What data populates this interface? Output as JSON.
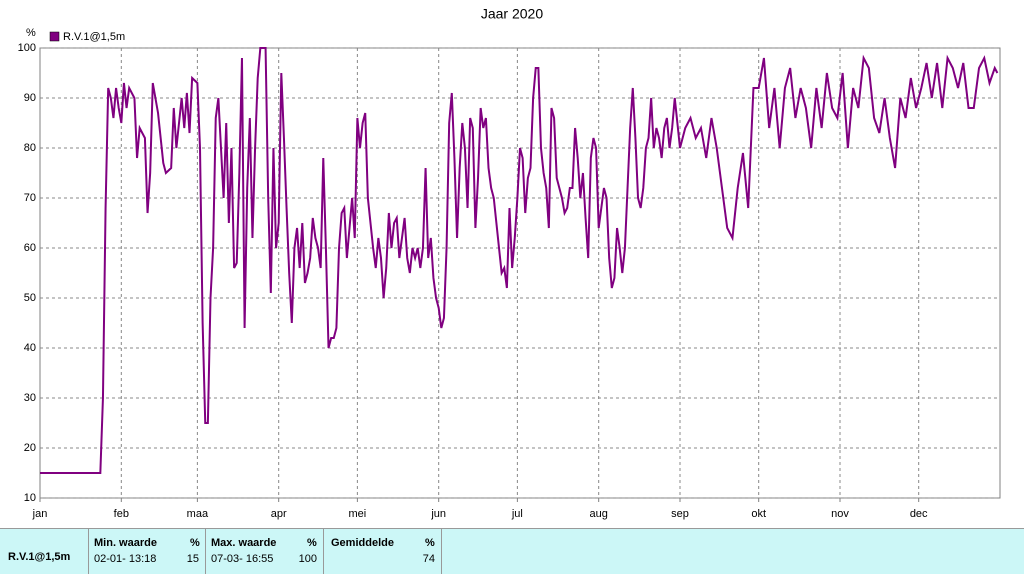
{
  "chart_data": {
    "type": "line",
    "title": "Jaar 2020",
    "y_unit": "%",
    "xlim": [
      0,
      366
    ],
    "xticks": [
      {
        "value": 0,
        "label": "jan"
      },
      {
        "value": 31,
        "label": "feb"
      },
      {
        "value": 60,
        "label": "maa"
      },
      {
        "value": 91,
        "label": "apr"
      },
      {
        "value": 121,
        "label": "mei"
      },
      {
        "value": 152,
        "label": "jun"
      },
      {
        "value": 182,
        "label": "jul"
      },
      {
        "value": 213,
        "label": "aug"
      },
      {
        "value": 244,
        "label": "sep"
      },
      {
        "value": 274,
        "label": "okt"
      },
      {
        "value": 305,
        "label": "nov"
      },
      {
        "value": 335,
        "label": "dec"
      }
    ],
    "ylim": [
      10,
      100
    ],
    "yticks": [
      10,
      20,
      30,
      40,
      50,
      60,
      70,
      80,
      90,
      100
    ],
    "grid": true,
    "series": [
      {
        "name": "R.V.1@1,5m",
        "color": "#800080",
        "x": [
          0,
          23,
          24,
          25,
          26,
          27,
          28,
          29,
          30,
          31,
          32,
          33,
          34,
          36,
          37,
          38,
          40,
          41,
          42,
          43,
          45,
          47,
          48,
          50,
          51,
          52,
          54,
          55,
          56,
          57,
          58,
          60,
          61,
          62,
          63,
          64,
          65,
          66,
          67,
          68,
          69,
          70,
          71,
          72,
          73,
          74,
          75,
          76,
          77,
          78,
          79,
          80,
          81,
          82,
          83,
          84,
          85,
          86,
          87,
          88,
          89,
          90,
          91,
          92,
          93,
          94,
          95,
          96,
          97,
          98,
          99,
          100,
          101,
          102,
          103,
          104,
          105,
          106,
          107,
          108,
          109,
          110,
          111,
          112,
          113,
          114,
          115,
          116,
          117,
          118,
          119,
          120,
          121,
          122,
          123,
          124,
          125,
          126,
          127,
          128,
          129,
          130,
          131,
          132,
          133,
          134,
          135,
          136,
          137,
          138,
          139,
          140,
          141,
          142,
          143,
          144,
          145,
          146,
          147,
          148,
          149,
          150,
          151,
          152,
          153,
          154,
          155,
          156,
          157,
          158,
          159,
          160,
          161,
          162,
          163,
          164,
          165,
          166,
          167,
          168,
          169,
          170,
          171,
          172,
          173,
          174,
          175,
          176,
          177,
          178,
          179,
          180,
          181,
          182,
          183,
          184,
          185,
          186,
          187,
          188,
          189,
          190,
          191,
          192,
          193,
          194,
          195,
          196,
          197,
          198,
          199,
          200,
          201,
          202,
          203,
          204,
          205,
          206,
          207,
          208,
          209,
          210,
          211,
          212,
          213,
          214,
          215,
          216,
          217,
          218,
          219,
          220,
          221,
          222,
          223,
          224,
          225,
          226,
          227,
          228,
          229,
          230,
          231,
          232,
          233,
          234,
          235,
          236,
          237,
          238,
          239,
          240,
          241,
          242,
          244,
          246,
          248,
          250,
          252,
          254,
          256,
          258,
          260,
          262,
          264,
          266,
          268,
          270,
          272,
          274,
          276,
          278,
          280,
          282,
          284,
          286,
          288,
          290,
          292,
          294,
          296,
          298,
          300,
          302,
          304,
          306,
          308,
          310,
          312,
          314,
          316,
          318,
          320,
          322,
          324,
          326,
          328,
          330,
          332,
          334,
          336,
          338,
          340,
          342,
          344,
          346,
          348,
          350,
          352,
          354,
          356,
          358,
          360,
          362,
          364,
          365
        ],
        "values": [
          15,
          15,
          30,
          68,
          92,
          90,
          86,
          92,
          88,
          85,
          93,
          88,
          92,
          90,
          78,
          84,
          82,
          67,
          75,
          93,
          87,
          77,
          75,
          76,
          88,
          80,
          90,
          84,
          91,
          83,
          94,
          93,
          80,
          45,
          25,
          25,
          50,
          60,
          86,
          90,
          80,
          70,
          85,
          65,
          80,
          56,
          57,
          75,
          98,
          44,
          72,
          86,
          62,
          80,
          94,
          100,
          100,
          100,
          70,
          51,
          80,
          60,
          65,
          95,
          82,
          68,
          55,
          45,
          60,
          64,
          56,
          65,
          53,
          55,
          58,
          66,
          62,
          60,
          56,
          78,
          60,
          40,
          42,
          42,
          44,
          60,
          67,
          68,
          58,
          64,
          70,
          62,
          86,
          80,
          85,
          87,
          70,
          65,
          60,
          56,
          62,
          58,
          50,
          56,
          67,
          60,
          65,
          66,
          58,
          62,
          66,
          58,
          55,
          60,
          58,
          60,
          56,
          60,
          76,
          58,
          62,
          54,
          50,
          48,
          44,
          46,
          60,
          85,
          91,
          78,
          62,
          76,
          85,
          80,
          68,
          86,
          84,
          64,
          74,
          88,
          84,
          86,
          76,
          72,
          70,
          65,
          60,
          55,
          56,
          52,
          68,
          56,
          62,
          70,
          80,
          78,
          67,
          74,
          76,
          90,
          96,
          96,
          80,
          75,
          72,
          64,
          88,
          86,
          74,
          72,
          70,
          67,
          68,
          72,
          72,
          84,
          78,
          70,
          75,
          66,
          58,
          78,
          82,
          80,
          64,
          68,
          72,
          70,
          58,
          52,
          54,
          64,
          60,
          55,
          60,
          72,
          84,
          92,
          82,
          70,
          68,
          72,
          80,
          82,
          90,
          80,
          84,
          82,
          78,
          84,
          86,
          80,
          84,
          90,
          80,
          84,
          86,
          82,
          84,
          78,
          86,
          80,
          72,
          64,
          62,
          72,
          79,
          68,
          92,
          92,
          98,
          84,
          92,
          80,
          92,
          96,
          86,
          92,
          88,
          80,
          92,
          84,
          95,
          88,
          86,
          95,
          80,
          92,
          88,
          98,
          96,
          86,
          83,
          90,
          82,
          76,
          90,
          86,
          94,
          88,
          92,
          97,
          90,
          97,
          88,
          98,
          96,
          92,
          97,
          88,
          88,
          96,
          98,
          93,
          96,
          95
        ]
      }
    ]
  },
  "summary": {
    "label": "R.V.1@1,5m",
    "min": {
      "header": "Min. waarde",
      "unit": "%",
      "time": "02-01- 13:18",
      "value": "15"
    },
    "max": {
      "header": "Max. waarde",
      "unit": "%",
      "time": "07-03- 16:55",
      "value": "100"
    },
    "avg": {
      "header": "Gemiddelde",
      "unit": "%",
      "value": "74"
    }
  }
}
